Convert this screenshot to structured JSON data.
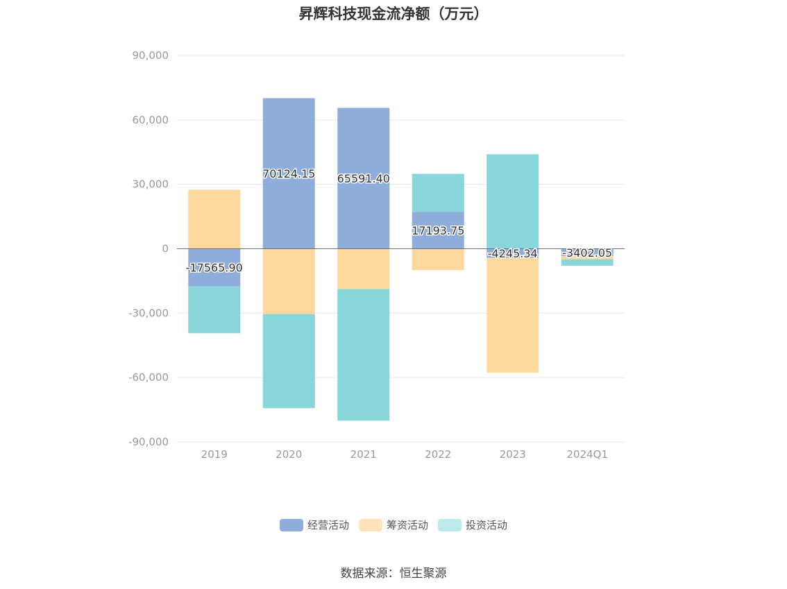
{
  "chart_data": {
    "type": "bar",
    "stacked": true,
    "title": "昇辉科技现金流净额（万元）",
    "categories": [
      "2019",
      "2020",
      "2021",
      "2022",
      "2023",
      "2024Q1"
    ],
    "series": [
      {
        "name": "经营活动",
        "color": "#8EADDB",
        "legend_color": "#8EADDB",
        "values": [
          -17565.9,
          70124.15,
          65591.4,
          17193.75,
          -4245.34,
          -3402.05
        ],
        "labels": [
          "-17565.90",
          "70124.15",
          "65591.40",
          "17193.75",
          "-4245.34",
          "-3402.05"
        ]
      },
      {
        "name": "筹资活动",
        "color": "#FDD89C",
        "legend_color": "#FEE3BC",
        "values": [
          27500,
          -30500,
          -18800,
          -10000,
          -53500,
          -1500
        ]
      },
      {
        "name": "投资活动",
        "color": "#88D5DA",
        "legend_color": "#BDE9EC",
        "values": [
          -21800,
          -43800,
          -61300,
          17700,
          44000,
          -3000
        ]
      }
    ],
    "ylim": [
      -90000,
      90000
    ],
    "yticks": [
      90000,
      60000,
      30000,
      0,
      -30000,
      -60000,
      -90000
    ],
    "ytick_labels": [
      "90,000",
      "60,000",
      "30,000",
      "0",
      "-30,000",
      "-60,000",
      "-90,000"
    ],
    "grid": true,
    "legend_position": "bottom"
  },
  "source_note": "数据来源：恒生聚源"
}
